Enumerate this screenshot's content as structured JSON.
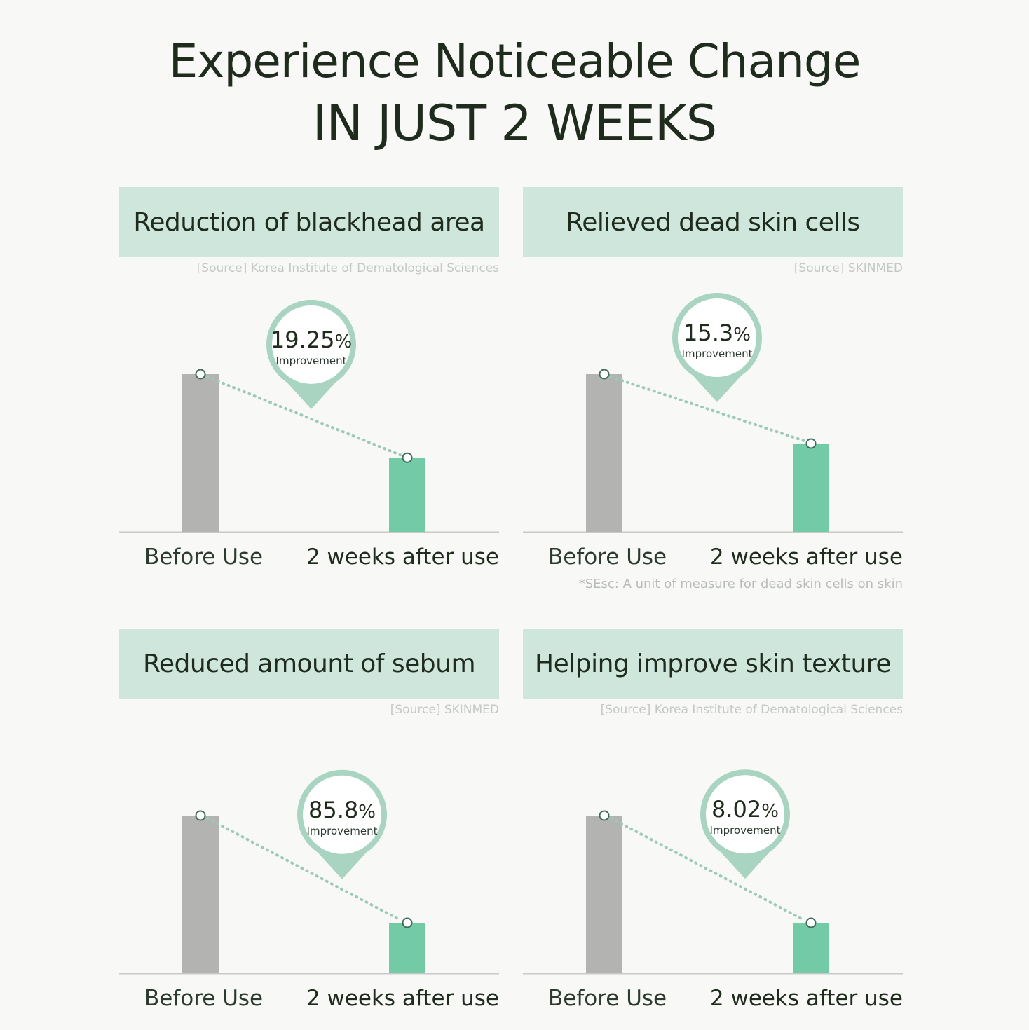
{
  "headline": {
    "line1": "Experience Noticeable Change",
    "line2": "IN JUST 2 WEEKS"
  },
  "colors": {
    "header_bg": "#cfe6dc",
    "before_bar": "#b3b3b1",
    "after_bar": "#72caa6",
    "accent": "#a9d4c2",
    "dots": "#9bcbb7"
  },
  "panels": [
    {
      "title": "Reduction of blackhead area",
      "source": "[Source] Korea Institute of Dematological Sciences",
      "badge": {
        "value": "19.25",
        "unit": "%",
        "label": "Improvement"
      },
      "footnote": ""
    },
    {
      "title": "Relieved dead skin cells",
      "source": "[Source] SKINMED",
      "badge": {
        "value": "15.3",
        "unit": "%",
        "label": "Improvement"
      },
      "footnote": "*SEsc: A unit of measure for dead skin cells on skin"
    },
    {
      "title": "Reduced amount of sebum",
      "source": "[Source] SKINMED",
      "badge": {
        "value": "85.8",
        "unit": "%",
        "label": "Improvement"
      },
      "footnote": ""
    },
    {
      "title": "Helping improve skin texture",
      "source": "[Source] Korea Institute of Dematological Sciences",
      "badge": {
        "value": "8.02",
        "unit": "%",
        "label": "Improvement"
      },
      "footnote": ""
    }
  ],
  "chart_data": [
    {
      "type": "bar",
      "title": "Reduction of blackhead area",
      "categories": [
        "Before Use",
        "2 weeks after use"
      ],
      "values": [
        100,
        47
      ],
      "ylim": [
        0,
        100
      ],
      "grid": false
    },
    {
      "type": "bar",
      "title": "Relieved dead skin cells",
      "categories": [
        "Before Use",
        "2 weeks after use"
      ],
      "values": [
        100,
        56
      ],
      "ylim": [
        0,
        100
      ],
      "grid": false
    },
    {
      "type": "bar",
      "title": "Reduced amount of sebum",
      "categories": [
        "Before Use",
        "2 weeks after use"
      ],
      "values": [
        100,
        32
      ],
      "ylim": [
        0,
        100
      ],
      "grid": false
    },
    {
      "type": "bar",
      "title": "Helping improve skin texture",
      "categories": [
        "Before Use",
        "2 weeks after use"
      ],
      "values": [
        100,
        32
      ],
      "ylim": [
        0,
        100
      ],
      "grid": false
    }
  ]
}
